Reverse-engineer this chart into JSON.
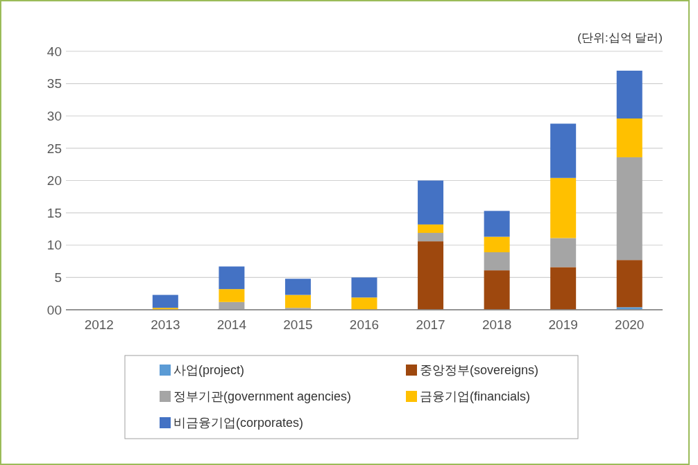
{
  "chart_data": {
    "type": "bar",
    "stacked": true,
    "categories": [
      "2012",
      "2013",
      "2014",
      "2015",
      "2016",
      "2017",
      "2018",
      "2019",
      "2020"
    ],
    "series": [
      {
        "name": "사업(project)",
        "color": "#5b9bd5",
        "values": [
          0,
          0,
          0,
          0,
          0,
          0,
          0,
          0,
          0.4
        ]
      },
      {
        "name": "중앙정부(sovereigns)",
        "color": "#9e480e",
        "values": [
          0,
          0,
          0,
          0,
          0,
          10.6,
          6.1,
          6.6,
          7.3
        ]
      },
      {
        "name": "정부기관(government agencies)",
        "color": "#a5a5a5",
        "values": [
          0,
          0,
          1.2,
          0.3,
          0,
          1.3,
          2.8,
          4.5,
          15.9
        ]
      },
      {
        "name": "금융기업(financials)",
        "color": "#ffc000",
        "values": [
          0,
          0.3,
          2.0,
          2.0,
          1.9,
          1.3,
          2.4,
          9.3,
          6.0
        ]
      },
      {
        "name": "비금융기업(corporates)",
        "color": "#4472c4",
        "values": [
          0,
          2.0,
          3.5,
          2.5,
          3.1,
          6.8,
          4.0,
          8.4,
          7.4
        ]
      }
    ],
    "ylim": [
      0,
      40
    ],
    "yticks": [
      {
        "value": 0,
        "label": "00"
      },
      5,
      10,
      15,
      20,
      25,
      30,
      35,
      40
    ],
    "grid": "y",
    "legend": "bottom",
    "annotations": [
      "(단위:십억 달러)"
    ]
  }
}
